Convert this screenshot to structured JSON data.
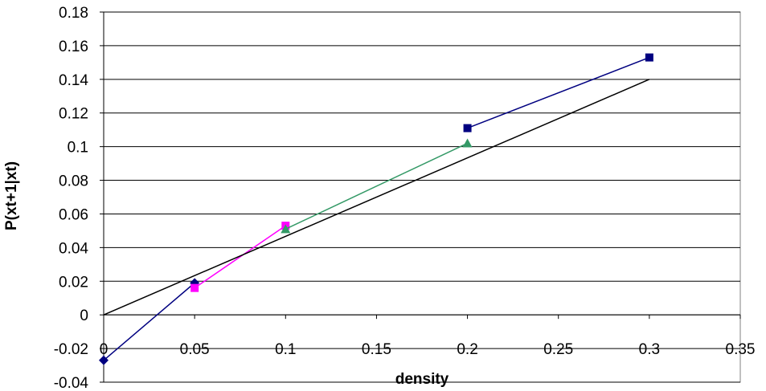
{
  "chart_data": {
    "type": "line",
    "title": "",
    "xlabel": "density",
    "ylabel": "P(xt+1|xt)",
    "xlim": [
      0,
      0.35
    ],
    "ylim": [
      -0.04,
      0.18
    ],
    "x_ticks": [
      "0",
      "0.05",
      "0.1",
      "0.15",
      "0.2",
      "0.25",
      "0.3",
      "0.35"
    ],
    "x_tick_values": [
      0,
      0.05,
      0.1,
      0.15,
      0.2,
      0.25,
      0.3,
      0.35
    ],
    "y_ticks": [
      "0.18",
      "0.16",
      "0.14",
      "0.12",
      "0.1",
      "0.08",
      "0.06",
      "0.04",
      "0.02",
      "0",
      "-0.02",
      "-0.04"
    ],
    "y_tick_values": [
      0.18,
      0.16,
      0.14,
      0.12,
      0.1,
      0.08,
      0.06,
      0.04,
      0.02,
      0,
      -0.02,
      -0.04
    ],
    "grid": "horizontal",
    "legend": "none",
    "series": [
      {
        "color": "#000080",
        "marker": "diamond",
        "points": [
          [
            0,
            -0.027
          ],
          [
            0.05,
            0.019
          ]
        ]
      },
      {
        "color": "#FF00FF",
        "marker": "square",
        "points": [
          [
            0.05,
            0.016
          ],
          [
            0.1,
            0.053
          ]
        ]
      },
      {
        "color": "#339966",
        "marker": "triangle",
        "points": [
          [
            0.1,
            0.051
          ],
          [
            0.2,
            0.102
          ]
        ]
      },
      {
        "color": "#000080",
        "marker": "square",
        "points": [
          [
            0.2,
            0.111
          ],
          [
            0.3,
            0.153
          ]
        ]
      },
      {
        "color": "#000000",
        "marker": "none",
        "points": [
          [
            0,
            0
          ],
          [
            0.3,
            0.14
          ]
        ]
      }
    ]
  }
}
